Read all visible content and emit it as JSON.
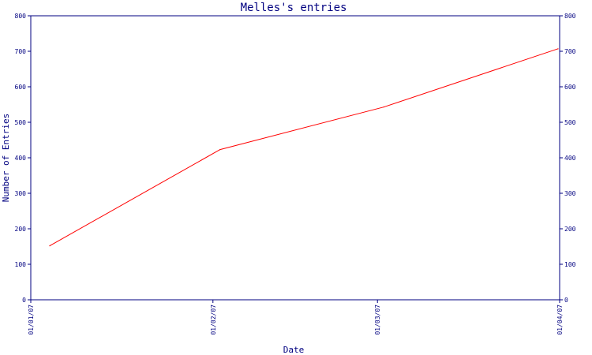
{
  "chart_data": {
    "type": "line",
    "title": "Melles's entries",
    "xlabel": "Date",
    "ylabel": "Number of Entries",
    "x_tick_labels": [
      "01/01/07",
      "01/02/07",
      "01/03/07",
      "01/04/07"
    ],
    "ylim": [
      0,
      800
    ],
    "y_ticks": [
      0,
      100,
      200,
      300,
      400,
      500,
      600,
      700,
      800
    ],
    "series": [
      {
        "x": [
          "2007-01-01",
          "2007-02-01",
          "2007-03-01",
          "2007-04-01"
        ],
        "values": [
          152,
          423,
          543,
          707
        ],
        "color": "#ff0000"
      }
    ],
    "axis_color": "#000080",
    "grid": false,
    "right_axis": true
  }
}
